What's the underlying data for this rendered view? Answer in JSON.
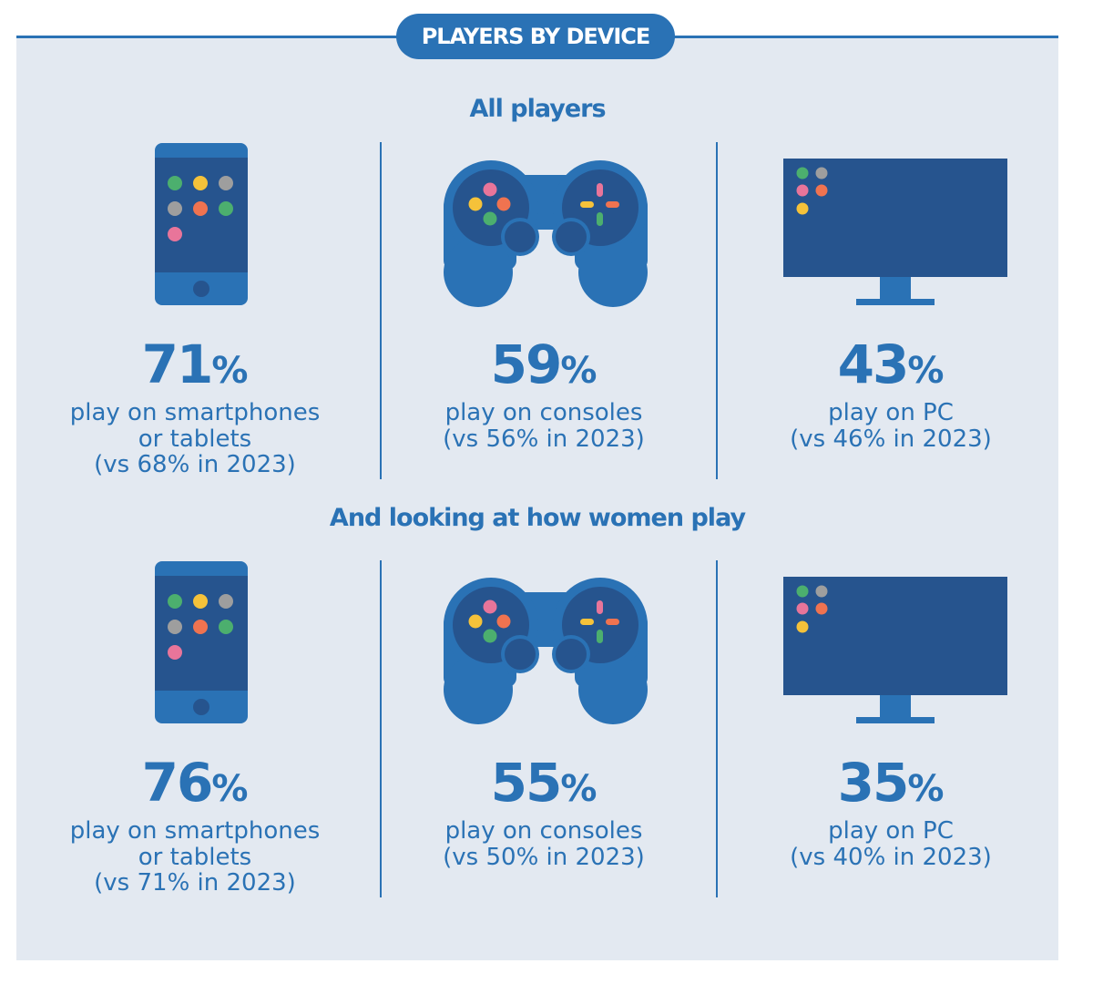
{
  "header": {
    "title": "PLAYERS BY DEVICE"
  },
  "colors": {
    "primary": "#2a72b5",
    "dark": "#26548e",
    "background": "#e3e9f1",
    "dot_green": "#4caf6e",
    "dot_yellow": "#f5c23a",
    "dot_grey": "#9e9e9e",
    "dot_orange": "#ef7350",
    "dot_pink": "#e8759a"
  },
  "chart_data": {
    "type": "table",
    "title": "PLAYERS BY DEVICE",
    "devices": [
      "smartphones or tablets",
      "consoles",
      "PC"
    ],
    "comparison_year": 2023,
    "groups": [
      {
        "heading": "All players",
        "stats": [
          {
            "icon": "smartphone-icon",
            "value": "71",
            "unit": "%",
            "line1": "play on smartphones",
            "line2": "or tablets",
            "line3": "(vs 68% in 2023)",
            "current": 71,
            "previous": 68
          },
          {
            "icon": "gamepad-icon",
            "value": "59",
            "unit": "%",
            "line1": "play on consoles",
            "line2": "(vs 56% in 2023)",
            "line3": "",
            "current": 59,
            "previous": 56
          },
          {
            "icon": "monitor-icon",
            "value": "43",
            "unit": "%",
            "line1": "play on PC",
            "line2": "(vs 46% in 2023)",
            "line3": "",
            "current": 43,
            "previous": 46
          }
        ]
      },
      {
        "heading": "And looking at how women play",
        "stats": [
          {
            "icon": "smartphone-icon",
            "value": "76",
            "unit": "%",
            "line1": "play on smartphones",
            "line2": "or tablets",
            "line3": "(vs 71% in 2023)",
            "current": 76,
            "previous": 71
          },
          {
            "icon": "gamepad-icon",
            "value": "55",
            "unit": "%",
            "line1": "play on consoles",
            "line2": "(vs 50% in 2023)",
            "line3": "",
            "current": 55,
            "previous": 50
          },
          {
            "icon": "monitor-icon",
            "value": "35",
            "unit": "%",
            "line1": "play on PC",
            "line2": "(vs 40% in 2023)",
            "line3": "",
            "current": 35,
            "previous": 40
          }
        ]
      }
    ]
  }
}
